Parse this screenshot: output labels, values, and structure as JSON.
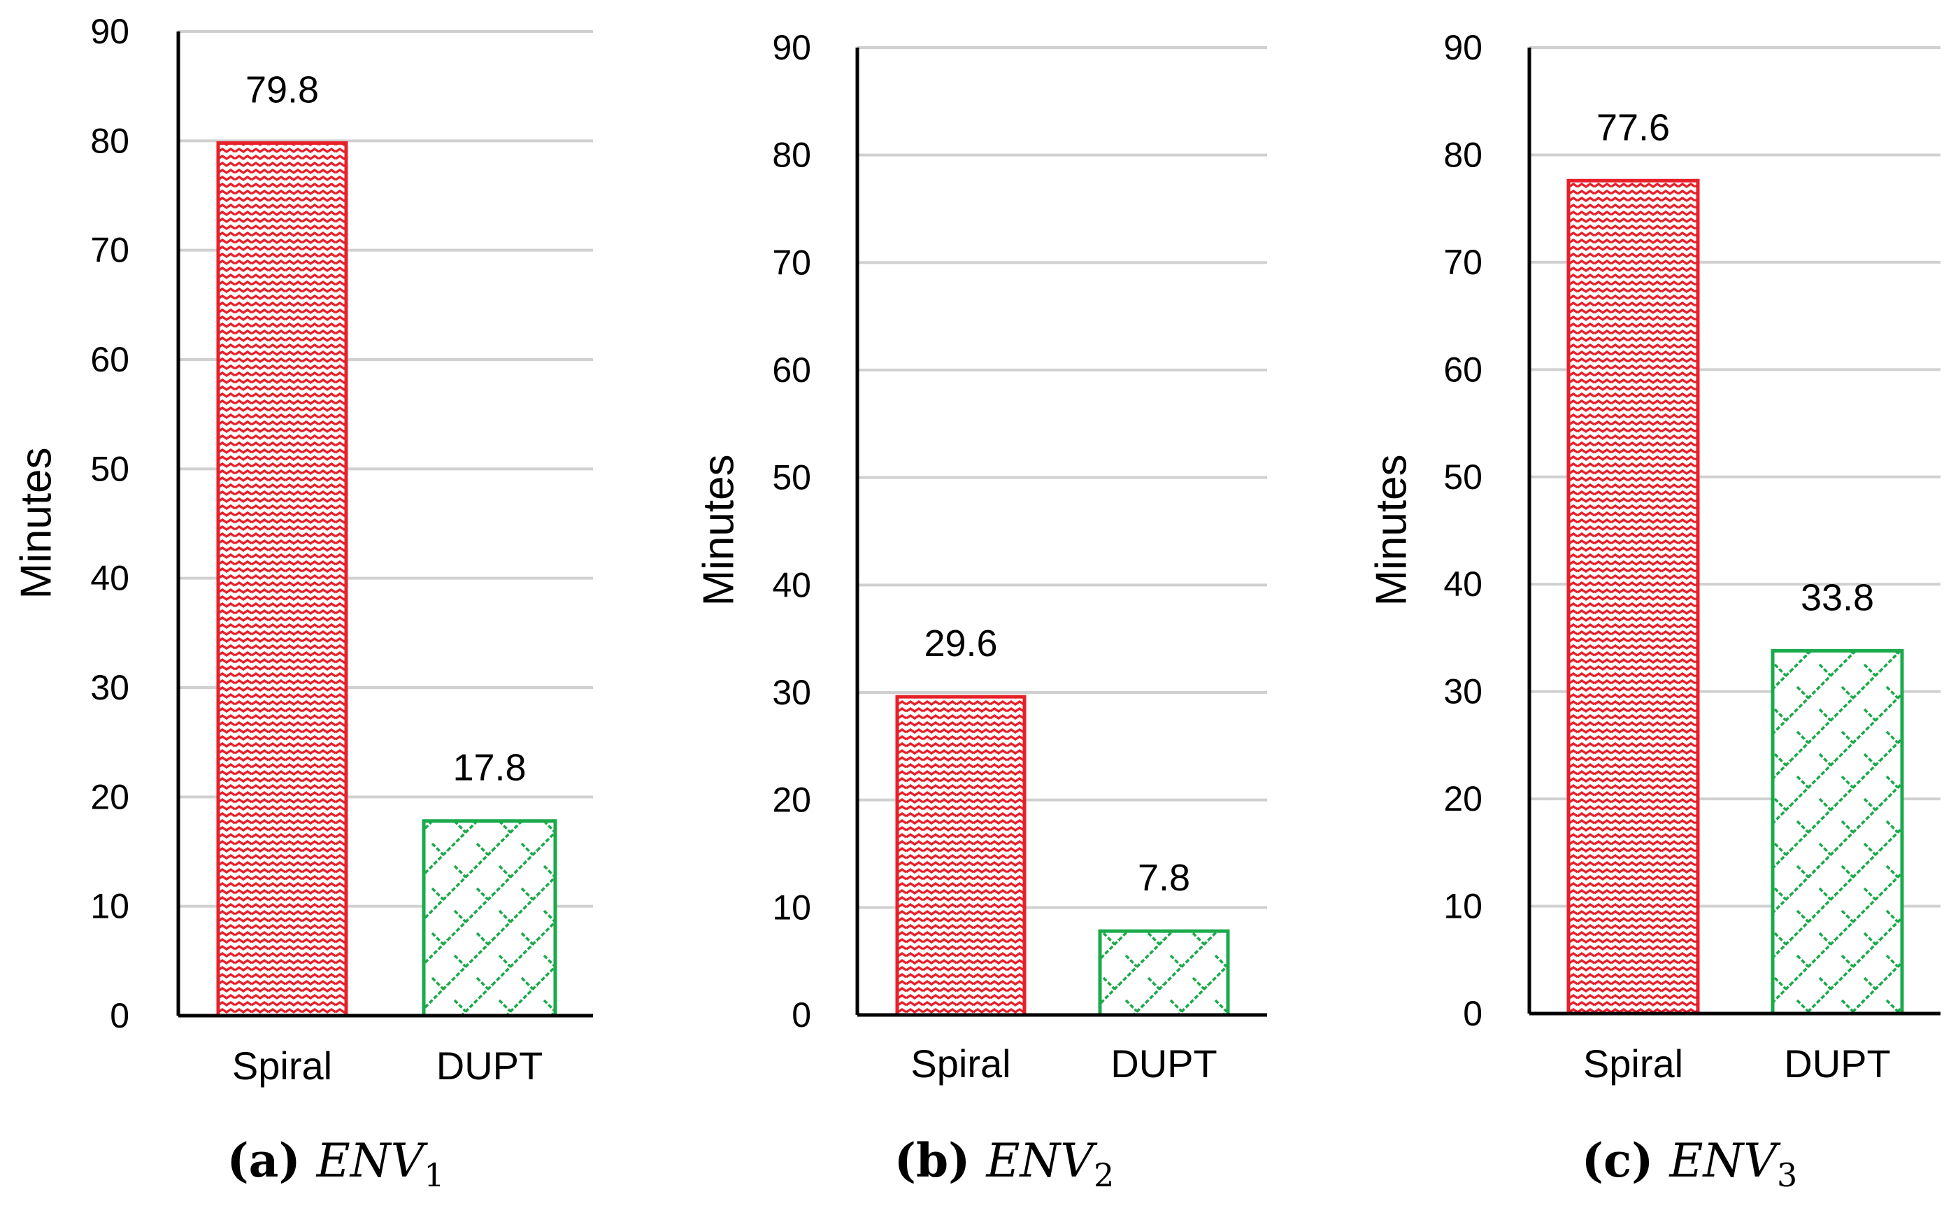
{
  "colors": {
    "series_red": "#e8202a",
    "series_green": "#1aaa4a",
    "grid": "#d0d0d0"
  },
  "chart_data": [
    {
      "type": "bar",
      "caption_letter": "(a)",
      "caption_env": "ENV",
      "caption_sub": "1",
      "ylabel": "Minutes",
      "ylim": [
        0,
        90
      ],
      "yticks": [
        0,
        10,
        20,
        30,
        40,
        50,
        60,
        70,
        80,
        90
      ],
      "categories": [
        "Spiral",
        "DUPT"
      ],
      "values": [
        79.8,
        17.8
      ],
      "value_labels": [
        "79.8",
        "17.8"
      ]
    },
    {
      "type": "bar",
      "caption_letter": "(b)",
      "caption_env": "ENV",
      "caption_sub": "2",
      "ylabel": "Minutes",
      "ylim": [
        0,
        90
      ],
      "yticks": [
        0,
        10,
        20,
        30,
        40,
        50,
        60,
        70,
        80,
        90
      ],
      "categories": [
        "Spiral",
        "DUPT"
      ],
      "values": [
        29.6,
        7.8
      ],
      "value_labels": [
        "29.6",
        "7.8"
      ]
    },
    {
      "type": "bar",
      "caption_letter": "(c)",
      "caption_env": "ENV",
      "caption_sub": "3",
      "ylabel": "Minutes",
      "ylim": [
        0,
        90
      ],
      "yticks": [
        0,
        10,
        20,
        30,
        40,
        50,
        60,
        70,
        80,
        90
      ],
      "categories": [
        "Spiral",
        "DUPT"
      ],
      "values": [
        77.6,
        33.8
      ],
      "value_labels": [
        "77.6",
        "33.8"
      ]
    }
  ]
}
